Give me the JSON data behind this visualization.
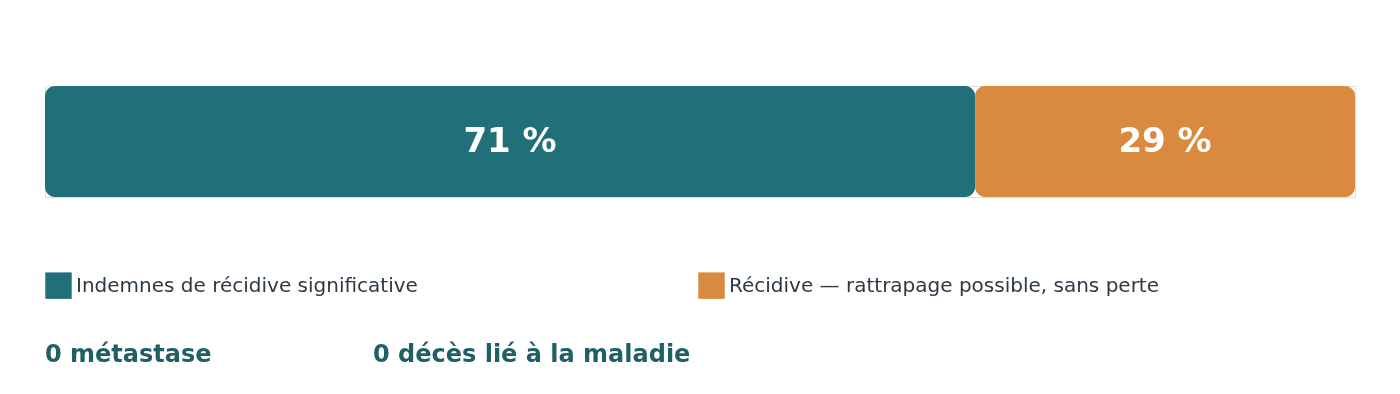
{
  "chart_data": {
    "type": "bar",
    "orientation": "horizontal",
    "stacked": true,
    "categories": [
      null
    ],
    "series": [
      {
        "name": "Indemnes de récidive significative",
        "color": "#216f78",
        "values": [
          71
        ],
        "value_labels": [
          "71 %"
        ]
      },
      {
        "name": "Récidive — rattrapage possible, sans perte",
        "color": "#d98a3e",
        "values": [
          29
        ],
        "value_labels": [
          "29 %"
        ]
      }
    ],
    "legend": "bottom",
    "tick_labels": false,
    "annotations": [
      "0 métastase",
      "0 décès lié à la maladie"
    ]
  }
}
